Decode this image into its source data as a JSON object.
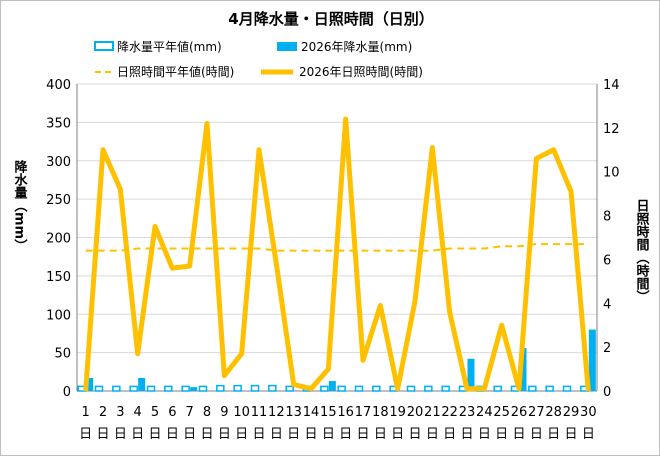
{
  "chart_data": {
    "type": "bar-line",
    "title": "4月降水量・日照時間（日別）",
    "ylabel_left": "降水量（mm）",
    "ylabel_right": "日照時間（時間）",
    "ylim_left": [
      0,
      400
    ],
    "ylim_right": [
      0,
      14
    ],
    "yticks_left": [
      "0",
      "50",
      "100",
      "150",
      "200",
      "250",
      "300",
      "350",
      "400"
    ],
    "yticks_right": [
      "0",
      "2",
      "4",
      "6",
      "8",
      "10",
      "12",
      "14"
    ],
    "day_suffix": "日",
    "categories": [
      "1",
      "2",
      "3",
      "4",
      "5",
      "6",
      "7",
      "8",
      "9",
      "10",
      "11",
      "12",
      "13",
      "14",
      "15",
      "16",
      "17",
      "18",
      "19",
      "20",
      "21",
      "22",
      "23",
      "24",
      "25",
      "26",
      "27",
      "28",
      "29",
      "30"
    ],
    "legend": {
      "precip_normal": "降水量平年値(mm)",
      "precip_2026": "2026年降水量(mm)",
      "sun_normal": "日照時間平年値(時間)",
      "sun_2026": "2026年日照時間(時間)"
    },
    "series": [
      {
        "name": "降水量平年値(mm)",
        "axis": "left",
        "style": "bar-outline",
        "color": "#00b0f0",
        "values": [
          6,
          6,
          6,
          6,
          6,
          6,
          6,
          6,
          7,
          7,
          7,
          7,
          6,
          6,
          6,
          6,
          6,
          6,
          6,
          6,
          6,
          6,
          6,
          6,
          6,
          6,
          6,
          6,
          6,
          6
        ]
      },
      {
        "name": "2026年降水量(mm)",
        "axis": "left",
        "style": "bar",
        "color": "#00b0f0",
        "values": [
          17,
          0,
          0,
          17,
          0,
          0,
          5,
          0,
          0,
          0,
          0,
          0,
          0,
          0,
          13,
          0,
          0,
          0,
          0,
          0,
          0,
          0,
          42,
          0,
          0,
          56,
          0,
          0,
          0,
          80
        ]
      },
      {
        "name": "日照時間平年値(時間)",
        "axis": "right",
        "style": "dashed-line",
        "color": "#ffc000",
        "values": [
          6.4,
          6.4,
          6.4,
          6.5,
          6.5,
          6.5,
          6.5,
          6.5,
          6.5,
          6.5,
          6.5,
          6.4,
          6.4,
          6.4,
          6.4,
          6.4,
          6.4,
          6.4,
          6.4,
          6.4,
          6.4,
          6.5,
          6.5,
          6.5,
          6.6,
          6.6,
          6.7,
          6.7,
          6.7,
          6.7
        ]
      },
      {
        "name": "2026年日照時間(時間)",
        "axis": "right",
        "style": "line",
        "color": "#ffc000",
        "values": [
          0,
          11.0,
          9.2,
          1.7,
          7.5,
          5.6,
          5.7,
          12.2,
          0.7,
          1.7,
          11.0,
          5.8,
          0.3,
          0.1,
          1.0,
          12.4,
          1.4,
          3.9,
          0.1,
          4.1,
          11.1,
          3.6,
          0.1,
          0.1,
          3.0,
          0.1,
          10.6,
          11.0,
          9.1,
          0
        ]
      }
    ],
    "grid": "horizontal",
    "legend_placement": "top"
  }
}
